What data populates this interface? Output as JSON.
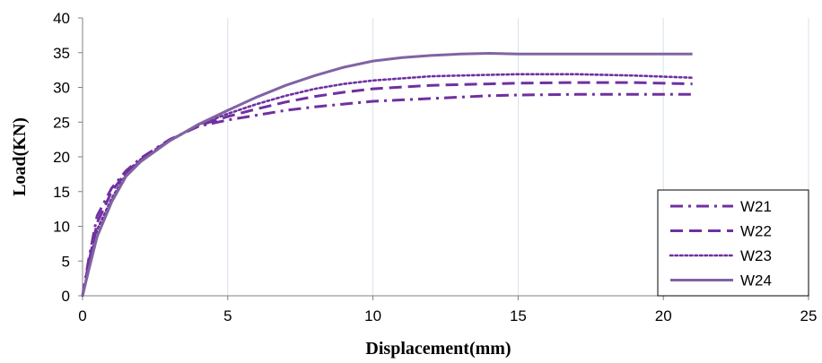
{
  "chart_data": {
    "type": "line",
    "title": "",
    "xlabel": "Displacement(mm)",
    "ylabel": "Load(KN)",
    "xlim": [
      0,
      25
    ],
    "ylim": [
      0,
      40
    ],
    "xticks": [
      0,
      5,
      10,
      15,
      20,
      25
    ],
    "yticks": [
      0,
      5,
      10,
      15,
      20,
      25,
      30,
      35,
      40
    ],
    "grid": "vertical",
    "legend_position": "bottom-right",
    "colors": {
      "line": "#7030a0",
      "line_w24": "#8064a2",
      "grid": "#d6e1ee",
      "axis": "#808080"
    },
    "series": [
      {
        "name": "W21",
        "style": "dashdot",
        "x": [
          0,
          0.2,
          0.5,
          1,
          1.5,
          2,
          3,
          4,
          5,
          6,
          7,
          8,
          9,
          10,
          12,
          14,
          15,
          17,
          19,
          21
        ],
        "y": [
          0,
          5,
          11.5,
          15.5,
          18,
          19.8,
          22.5,
          24.4,
          25.3,
          26.0,
          26.7,
          27.2,
          27.6,
          28.0,
          28.4,
          28.8,
          28.9,
          29.0,
          29.0,
          29.0
        ]
      },
      {
        "name": "W22",
        "style": "dashed",
        "x": [
          0,
          0.2,
          0.5,
          1,
          1.5,
          2,
          3,
          4,
          5,
          6,
          7,
          8,
          9,
          10,
          12,
          14,
          15,
          17,
          19,
          21
        ],
        "y": [
          0,
          4.5,
          10.5,
          15,
          17.8,
          19.6,
          22.4,
          24.5,
          25.8,
          26.9,
          27.9,
          28.7,
          29.3,
          29.8,
          30.3,
          30.5,
          30.6,
          30.7,
          30.7,
          30.5
        ]
      },
      {
        "name": "W23",
        "style": "dotted",
        "x": [
          0,
          0.2,
          0.5,
          1,
          1.5,
          2,
          3,
          4,
          5,
          6,
          7,
          8,
          9,
          10,
          12,
          14,
          15,
          17,
          19,
          21
        ],
        "y": [
          0,
          4,
          9.5,
          14,
          17.5,
          19.5,
          22.3,
          24.6,
          26.2,
          27.6,
          28.8,
          29.8,
          30.5,
          31.0,
          31.6,
          31.8,
          31.9,
          31.9,
          31.7,
          31.4
        ]
      },
      {
        "name": "W24",
        "style": "solid",
        "x": [
          0,
          0.2,
          0.5,
          1,
          1.5,
          2,
          3,
          4,
          5,
          6,
          7,
          8,
          9,
          10,
          11,
          12,
          13,
          14,
          15,
          17,
          19,
          21
        ],
        "y": [
          0,
          3.5,
          8.5,
          13.5,
          17.2,
          19.3,
          22.3,
          24.7,
          26.7,
          28.6,
          30.3,
          31.7,
          32.9,
          33.8,
          34.3,
          34.6,
          34.8,
          34.9,
          34.8,
          34.8,
          34.8,
          34.8
        ]
      }
    ]
  }
}
